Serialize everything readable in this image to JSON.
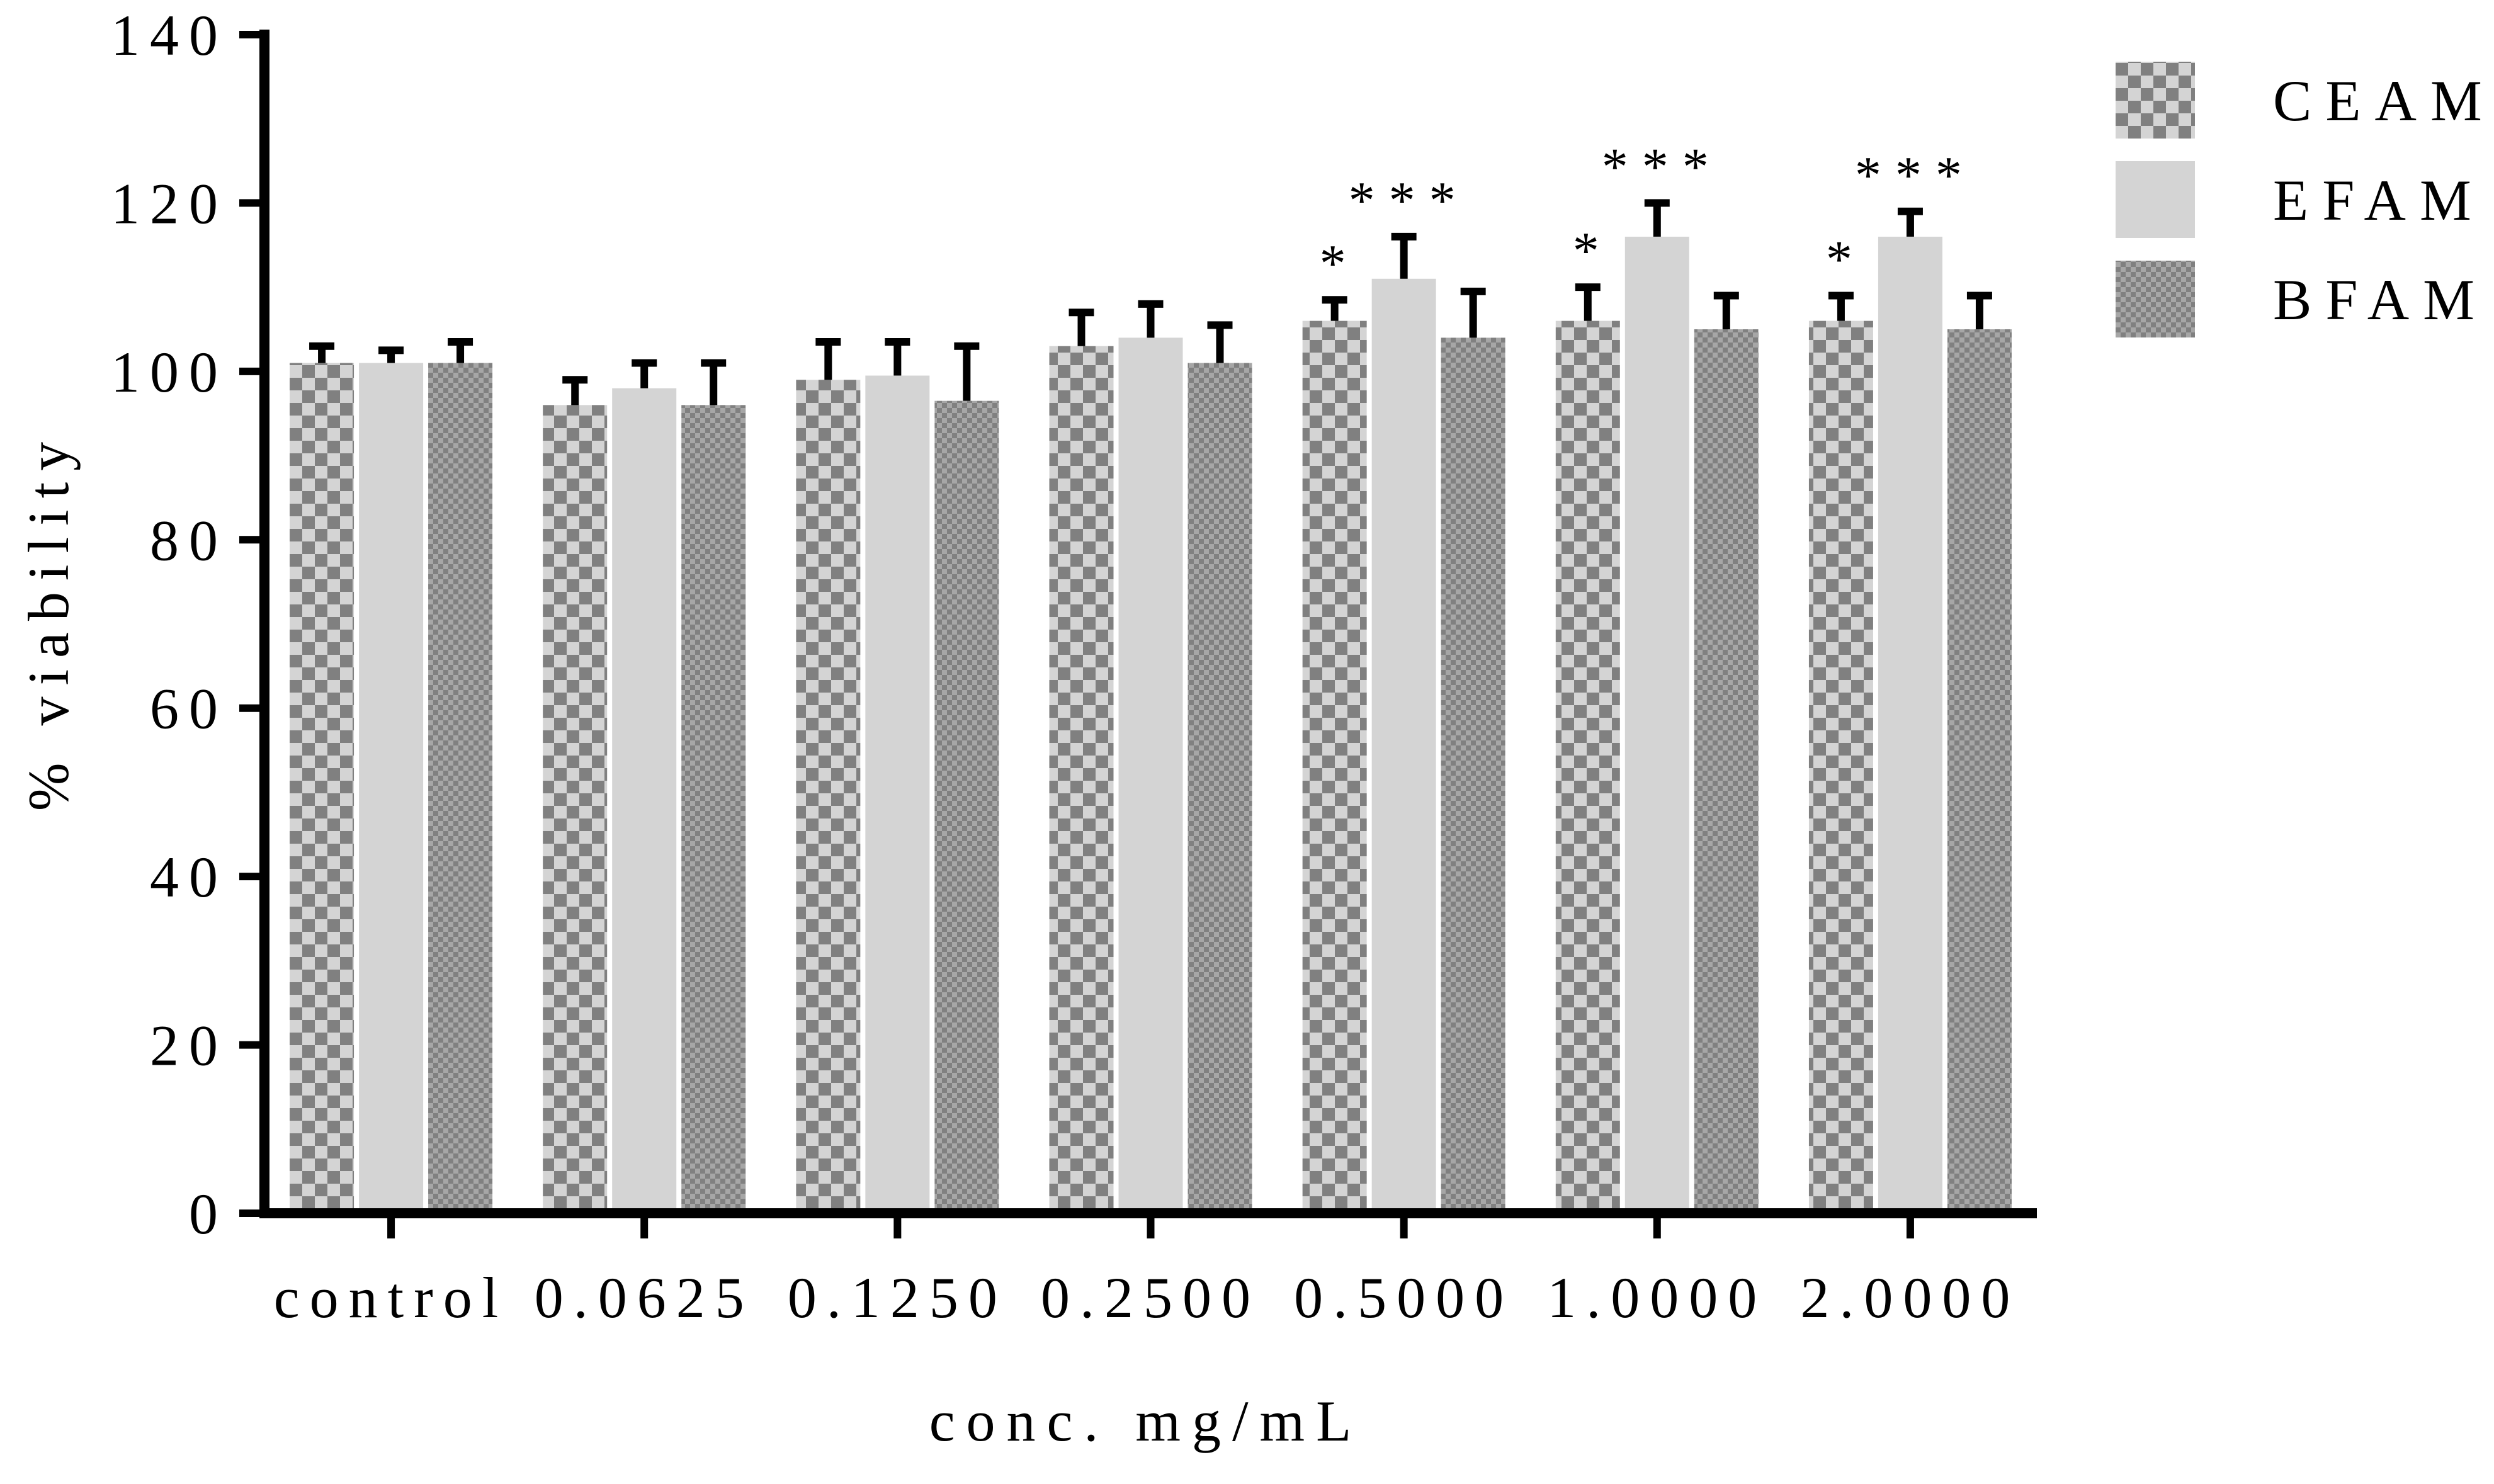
{
  "chart_data": {
    "type": "bar",
    "title": "",
    "xlabel": "conc. mg/mL",
    "ylabel": "% viability",
    "ylim": [
      0,
      140
    ],
    "yticks": [
      0,
      20,
      40,
      60,
      80,
      100,
      120,
      140
    ],
    "categories": [
      "control",
      "0.0625",
      "0.1250",
      "0.2500",
      "0.5000",
      "1.0000",
      "2.0000"
    ],
    "legend_position": "top-right",
    "grid": false,
    "series": [
      {
        "name": "CEAM",
        "pattern": "checker-coarse",
        "color": "#808080",
        "values": [
          101,
          96,
          99,
          103,
          106,
          106,
          106
        ],
        "errors": [
          2,
          3,
          4.5,
          4,
          2.5,
          4,
          3
        ],
        "significance": [
          "",
          "",
          "",
          "",
          "*",
          "*",
          "*"
        ]
      },
      {
        "name": "EFAM",
        "pattern": "solid",
        "color": "#d4d4d4",
        "values": [
          101,
          98,
          99.5,
          104,
          111,
          116,
          116
        ],
        "errors": [
          1.5,
          3,
          4,
          4,
          5,
          4,
          3
        ],
        "significance": [
          "",
          "",
          "",
          "",
          "***",
          "***",
          "***"
        ]
      },
      {
        "name": "BFAM",
        "pattern": "checker-fine",
        "color": "#808080",
        "values": [
          101,
          96,
          96.5,
          101,
          104,
          105,
          105
        ],
        "errors": [
          2.5,
          5,
          6.5,
          4.5,
          5.5,
          4,
          4
        ],
        "significance": [
          "",
          "",
          "",
          "",
          "",
          "",
          ""
        ]
      }
    ]
  }
}
